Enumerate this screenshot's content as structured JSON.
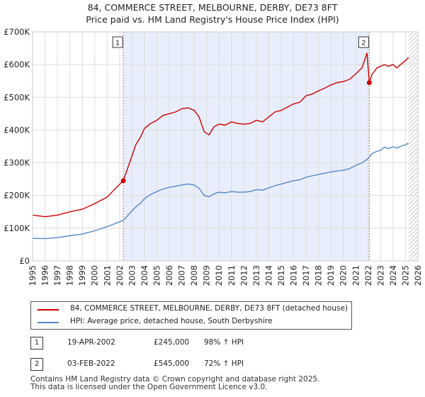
{
  "title_line1": "84, COMMERCE STREET, MELBOURNE, DERBY, DE73 8FT",
  "title_line2": "Price paid vs. HM Land Registry's House Price Index (HPI)",
  "chart_data": {
    "type": "line",
    "title": "84, COMMERCE STREET, MELBOURNE, DERBY, DE73 8FT - Price paid vs. HM Land Registry's House Price Index (HPI)",
    "xlim": [
      1995,
      2026
    ],
    "ylim": [
      0,
      700000
    ],
    "yticks": [
      0,
      100000,
      200000,
      300000,
      400000,
      500000,
      600000,
      700000
    ],
    "ytick_labels": [
      "£0",
      "£100K",
      "£200K",
      "£300K",
      "£400K",
      "£500K",
      "£600K",
      "£700K"
    ],
    "xticks": [
      1995,
      1996,
      1997,
      1998,
      1999,
      2000,
      2001,
      2002,
      2003,
      2004,
      2005,
      2006,
      2007,
      2008,
      2009,
      2010,
      2011,
      2012,
      2013,
      2014,
      2015,
      2016,
      2017,
      2018,
      2019,
      2020,
      2021,
      2022,
      2023,
      2024,
      2025,
      2026
    ],
    "grid": true,
    "shaded_period": [
      2002.3,
      2022.09
    ],
    "hatched_after": 2025.25,
    "series": [
      {
        "name": "84, COMMERCE STREET, MELBOURNE, DERBY, DE73 8FT (detached house)",
        "color": "#cc0000",
        "x": [
          1995.0,
          1996.0,
          1997.0,
          1998.0,
          1999.0,
          2000.0,
          2001.0,
          2001.5,
          2002.3,
          2002.8,
          2003.3,
          2003.7,
          2004.0,
          2004.5,
          2005.0,
          2005.5,
          2006.0,
          2006.5,
          2007.0,
          2007.5,
          2008.0,
          2008.4,
          2008.8,
          2009.2,
          2009.6,
          2010.0,
          2010.5,
          2011.0,
          2011.5,
          2012.0,
          2012.5,
          2013.0,
          2013.5,
          2014.0,
          2014.5,
          2015.0,
          2015.5,
          2016.0,
          2016.5,
          2017.0,
          2017.5,
          2018.0,
          2018.5,
          2019.0,
          2019.5,
          2020.0,
          2020.5,
          2021.0,
          2021.5,
          2021.9,
          2022.09,
          2022.3,
          2022.7,
          2023.0,
          2023.3,
          2023.6,
          2024.0,
          2024.3,
          2024.6,
          2025.0,
          2025.25
        ],
        "y": [
          140000,
          135000,
          140000,
          150000,
          158000,
          175000,
          195000,
          215000,
          245000,
          300000,
          355000,
          380000,
          405000,
          420000,
          430000,
          445000,
          450000,
          455000,
          465000,
          468000,
          460000,
          440000,
          395000,
          385000,
          410000,
          418000,
          415000,
          425000,
          420000,
          418000,
          420000,
          430000,
          425000,
          440000,
          455000,
          460000,
          470000,
          480000,
          485000,
          505000,
          510000,
          520000,
          528000,
          538000,
          545000,
          548000,
          555000,
          572000,
          590000,
          635000,
          545000,
          570000,
          590000,
          595000,
          600000,
          595000,
          600000,
          590000,
          600000,
          612000,
          622000
        ]
      },
      {
        "name": "HPI: Average price, detached house, South Derbyshire",
        "color": "#5588c8",
        "x": [
          1995.0,
          1996.0,
          1997.0,
          1998.0,
          1999.0,
          2000.0,
          2001.0,
          2001.5,
          2002.3,
          2002.8,
          2003.3,
          2003.7,
          2004.0,
          2004.5,
          2005.0,
          2005.5,
          2006.0,
          2006.5,
          2007.0,
          2007.5,
          2008.0,
          2008.4,
          2008.8,
          2009.2,
          2009.6,
          2010.0,
          2010.5,
          2011.0,
          2011.5,
          2012.0,
          2012.5,
          2013.0,
          2013.5,
          2014.0,
          2014.5,
          2015.0,
          2015.5,
          2016.0,
          2016.5,
          2017.0,
          2017.5,
          2018.0,
          2018.5,
          2019.0,
          2019.5,
          2020.0,
          2020.5,
          2021.0,
          2021.5,
          2021.9,
          2022.09,
          2022.3,
          2022.7,
          2023.0,
          2023.3,
          2023.6,
          2024.0,
          2024.3,
          2024.6,
          2025.0,
          2025.25
        ],
        "y": [
          69000,
          68000,
          71000,
          77000,
          82000,
          92000,
          105000,
          112000,
          124000,
          145000,
          165000,
          177000,
          190000,
          203000,
          212000,
          220000,
          225000,
          228000,
          232000,
          235000,
          232000,
          222000,
          200000,
          196000,
          205000,
          210000,
          208000,
          212000,
          210000,
          210000,
          212000,
          218000,
          216000,
          223000,
          230000,
          235000,
          240000,
          245000,
          248000,
          256000,
          260000,
          264000,
          268000,
          272000,
          275000,
          277000,
          282000,
          292000,
          300000,
          310000,
          317000,
          328000,
          335000,
          338000,
          348000,
          343000,
          349000,
          345000,
          350000,
          355000,
          360000
        ]
      }
    ],
    "annotations": [
      {
        "label": "1",
        "x": 2002.3,
        "y": 245000
      },
      {
        "label": "2",
        "x": 2022.09,
        "y": 545000
      }
    ]
  },
  "legend": {
    "items": [
      {
        "label": "84, COMMERCE STREET, MELBOURNE, DERBY, DE73 8FT (detached house)",
        "color": "#cc0000"
      },
      {
        "label": "HPI: Average price, detached house, South Derbyshire",
        "color": "#5588c8"
      }
    ]
  },
  "transactions": [
    {
      "num": "1",
      "date": "19-APR-2002",
      "price": "£245,000",
      "hpi": "98% ↑ HPI"
    },
    {
      "num": "2",
      "date": "03-FEB-2022",
      "price": "£545,000",
      "hpi": "72% ↑ HPI"
    }
  ],
  "footer": {
    "line1": "Contains HM Land Registry data © Crown copyright and database right 2025.",
    "line2": "This data is licensed under the Open Government Licence v3.0."
  }
}
